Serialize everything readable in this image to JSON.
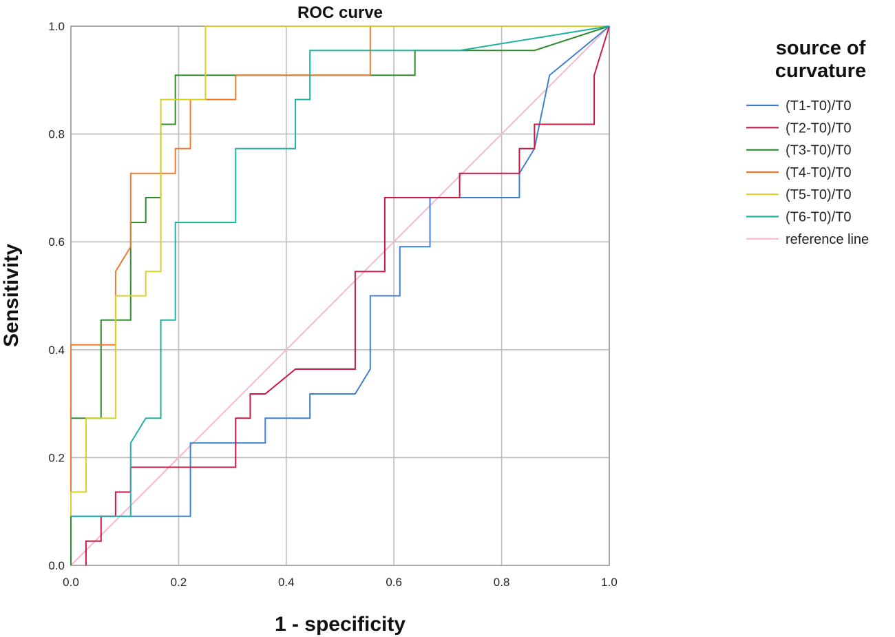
{
  "chart_data": {
    "type": "line",
    "title": "ROC curve",
    "xlabel": "1 - specificity",
    "ylabel": "Sensitivity",
    "xlim": [
      0,
      1
    ],
    "ylim": [
      0,
      1
    ],
    "xticks": [
      "0.0",
      "0.2",
      "0.4",
      "0.6",
      "0.8",
      "1.0"
    ],
    "yticks": [
      "0.0",
      "0.2",
      "0.4",
      "0.6",
      "0.8",
      "1.0"
    ],
    "grid": true,
    "legend_title": "source of curvature",
    "legend_position": "right",
    "series": [
      {
        "name": "(T1-T0)/T0",
        "color": "#3d7fd1",
        "points": [
          [
            0,
            0
          ],
          [
            0,
            0.091
          ],
          [
            0.028,
            0.091
          ],
          [
            0.111,
            0.091
          ],
          [
            0.222,
            0.091
          ],
          [
            0.222,
            0.227
          ],
          [
            0.361,
            0.227
          ],
          [
            0.361,
            0.273
          ],
          [
            0.444,
            0.273
          ],
          [
            0.444,
            0.318
          ],
          [
            0.528,
            0.318
          ],
          [
            0.556,
            0.364
          ],
          [
            0.556,
            0.5
          ],
          [
            0.611,
            0.5
          ],
          [
            0.611,
            0.591
          ],
          [
            0.667,
            0.591
          ],
          [
            0.667,
            0.682
          ],
          [
            0.833,
            0.682
          ],
          [
            0.833,
            0.727
          ],
          [
            0.861,
            0.773
          ],
          [
            0.889,
            0.909
          ],
          [
            1,
            1
          ]
        ]
      },
      {
        "name": "(T2-T0)/T0",
        "color": "#cc1744",
        "points": [
          [
            0.028,
            0
          ],
          [
            0.028,
            0.045
          ],
          [
            0.056,
            0.045
          ],
          [
            0.056,
            0.091
          ],
          [
            0.083,
            0.091
          ],
          [
            0.083,
            0.136
          ],
          [
            0.111,
            0.136
          ],
          [
            0.111,
            0.182
          ],
          [
            0.306,
            0.182
          ],
          [
            0.306,
            0.273
          ],
          [
            0.333,
            0.273
          ],
          [
            0.333,
            0.318
          ],
          [
            0.361,
            0.318
          ],
          [
            0.417,
            0.364
          ],
          [
            0.528,
            0.364
          ],
          [
            0.528,
            0.545
          ],
          [
            0.583,
            0.545
          ],
          [
            0.583,
            0.682
          ],
          [
            0.722,
            0.682
          ],
          [
            0.722,
            0.727
          ],
          [
            0.833,
            0.727
          ],
          [
            0.833,
            0.773
          ],
          [
            0.861,
            0.773
          ],
          [
            0.861,
            0.818
          ],
          [
            0.972,
            0.818
          ],
          [
            0.972,
            0.909
          ],
          [
            1,
            1
          ]
        ]
      },
      {
        "name": "(T3-T0)/T0",
        "color": "#2e8b2e",
        "points": [
          [
            0,
            0
          ],
          [
            0,
            0.273
          ],
          [
            0.056,
            0.273
          ],
          [
            0.056,
            0.455
          ],
          [
            0.111,
            0.455
          ],
          [
            0.111,
            0.636
          ],
          [
            0.139,
            0.636
          ],
          [
            0.139,
            0.682
          ],
          [
            0.167,
            0.682
          ],
          [
            0.167,
            0.818
          ],
          [
            0.194,
            0.818
          ],
          [
            0.194,
            0.909
          ],
          [
            0.639,
            0.909
          ],
          [
            0.639,
            0.955
          ],
          [
            0.861,
            0.955
          ],
          [
            1,
            1
          ]
        ]
      },
      {
        "name": "(T4-T0)/T0",
        "color": "#f07830",
        "points": [
          [
            0,
            0.136
          ],
          [
            0,
            0.409
          ],
          [
            0.083,
            0.409
          ],
          [
            0.083,
            0.545
          ],
          [
            0.111,
            0.591
          ],
          [
            0.111,
            0.727
          ],
          [
            0.194,
            0.727
          ],
          [
            0.194,
            0.773
          ],
          [
            0.222,
            0.773
          ],
          [
            0.222,
            0.864
          ],
          [
            0.306,
            0.864
          ],
          [
            0.306,
            0.909
          ],
          [
            0.556,
            0.909
          ],
          [
            0.556,
            0.955
          ],
          [
            0.556,
            1
          ],
          [
            1,
            1
          ]
        ]
      },
      {
        "name": "(T5-T0)/T0",
        "color": "#dccf26",
        "points": [
          [
            0,
            0.091
          ],
          [
            0,
            0.136
          ],
          [
            0.028,
            0.136
          ],
          [
            0.028,
            0.273
          ],
          [
            0.083,
            0.273
          ],
          [
            0.083,
            0.5
          ],
          [
            0.139,
            0.5
          ],
          [
            0.139,
            0.545
          ],
          [
            0.167,
            0.545
          ],
          [
            0.167,
            0.864
          ],
          [
            0.25,
            0.864
          ],
          [
            0.25,
            1
          ],
          [
            1,
            1
          ]
        ]
      },
      {
        "name": "(T6-T0)/T0",
        "color": "#20b2a0",
        "points": [
          [
            0,
            0.091
          ],
          [
            0.111,
            0.091
          ],
          [
            0.111,
            0.227
          ],
          [
            0.139,
            0.273
          ],
          [
            0.167,
            0.273
          ],
          [
            0.167,
            0.455
          ],
          [
            0.194,
            0.455
          ],
          [
            0.194,
            0.636
          ],
          [
            0.306,
            0.636
          ],
          [
            0.306,
            0.773
          ],
          [
            0.417,
            0.773
          ],
          [
            0.417,
            0.864
          ],
          [
            0.444,
            0.864
          ],
          [
            0.444,
            0.955
          ],
          [
            0.722,
            0.955
          ],
          [
            1,
            1
          ]
        ]
      },
      {
        "name": "reference line",
        "color": "#f5b8cf",
        "points": [
          [
            0,
            0
          ],
          [
            1,
            1
          ]
        ]
      }
    ]
  }
}
